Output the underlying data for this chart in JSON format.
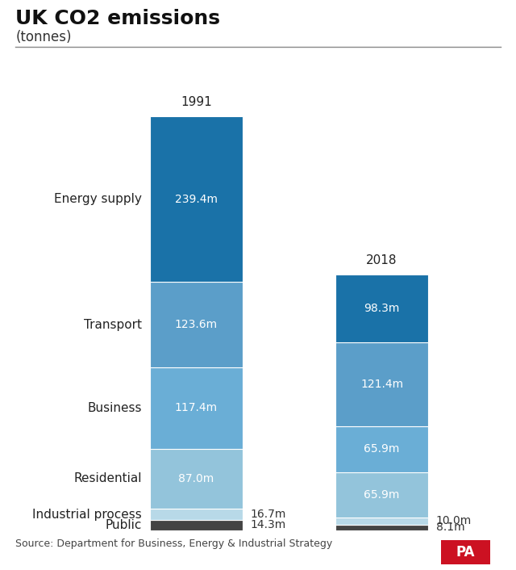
{
  "title": "UK CO2 emissions",
  "subtitle": "(tonnes)",
  "source": "Source: Department for Business, Energy & Industrial Strategy",
  "years": [
    "1991",
    "2018"
  ],
  "categories": [
    "Public",
    "Industrial process",
    "Residential",
    "Business",
    "Transport",
    "Energy supply"
  ],
  "values_1991": [
    14.3,
    16.7,
    87.0,
    117.4,
    123.6,
    239.4
  ],
  "values_2018": [
    8.1,
    10.0,
    65.9,
    65.9,
    121.4,
    98.3
  ],
  "colors": [
    "#444444",
    "#b8d9e8",
    "#93c4db",
    "#6aaed6",
    "#5b9ec9",
    "#1a72a8"
  ],
  "title_fontsize": 18,
  "subtitle_fontsize": 12,
  "label_fontsize": 10,
  "year_label_fontsize": 11,
  "category_fontsize": 11,
  "source_fontsize": 9,
  "pa_color": "#cc1122",
  "pa_text_color": "#ffffff",
  "background_color": "#ffffff"
}
